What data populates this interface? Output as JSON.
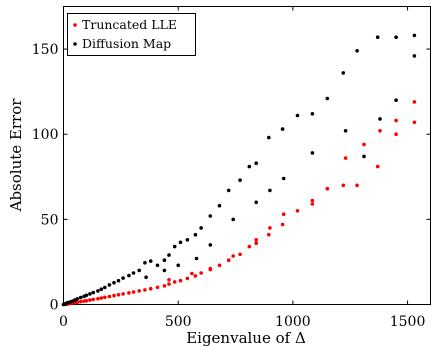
{
  "chart_data": {
    "type": "scatter",
    "xlabel": "Eigenvalue of Δ",
    "ylabel": "Absolute Error",
    "xlim": [
      0,
      1600
    ],
    "ylim": [
      0,
      175
    ],
    "xticks": [
      0,
      500,
      1000,
      1500
    ],
    "yticks": [
      0,
      50,
      100,
      150
    ],
    "grid": false,
    "legend_position": "top-left",
    "series": [
      {
        "name": "Truncated LLE",
        "color": "#ff0000",
        "x": [
          0,
          5,
          10,
          15,
          20,
          30,
          40,
          50,
          60,
          75,
          90,
          100,
          115,
          130,
          150,
          165,
          180,
          200,
          220,
          240,
          260,
          285,
          305,
          330,
          355,
          380,
          410,
          440,
          460,
          485,
          510,
          540,
          575,
          600,
          640,
          680,
          720,
          770,
          810,
          840,
          895,
          955,
          1020,
          1085,
          1150,
          1220,
          1280,
          1370,
          1450,
          1530
        ],
        "y": [
          0.0,
          0.1,
          0.2,
          0.3,
          0.4,
          0.6,
          0.8,
          1.1,
          1.3,
          1.7,
          2.0,
          2.2,
          2.6,
          3.0,
          3.4,
          3.8,
          4.2,
          4.7,
          5.2,
          5.7,
          6.2,
          6.8,
          7.3,
          8.0,
          8.6,
          9.3,
          10.1,
          10.9,
          12.0,
          13.3,
          14.0,
          15.3,
          16.8,
          18.5,
          20.5,
          23.0,
          26.0,
          29.5,
          34.0,
          36.0,
          41.0,
          47.0,
          55.0,
          61.0,
          68.0,
          70.0,
          70.0,
          81.0,
          100.0,
          107.0
        ]
      },
      {
        "name": "",
        "color": "#ff0000",
        "x": [
          460,
          560,
          640,
          740,
          840,
          900,
          960,
          1085,
          1230,
          1310,
          1380,
          1450,
          1530
        ],
        "y": [
          14.5,
          18.2,
          21.0,
          28.5,
          38.0,
          45.0,
          53.0,
          59.0,
          86.0,
          94.0,
          102.0,
          108.0,
          119.0
        ]
      },
      {
        "name": "Diffusion Map",
        "color": "#000000",
        "x": [
          0,
          5,
          10,
          15,
          20,
          30,
          40,
          50,
          60,
          75,
          90,
          100,
          115,
          130,
          150,
          165,
          180,
          200,
          220,
          240,
          260,
          285,
          305,
          330,
          355,
          380,
          410,
          440,
          460,
          485,
          510,
          540,
          575,
          600,
          640,
          680,
          720,
          770,
          810,
          840,
          895,
          955,
          1020,
          1085,
          1150,
          1220,
          1280,
          1370,
          1450,
          1530
        ],
        "y": [
          0.0,
          0.2,
          0.5,
          0.8,
          1.1,
          1.5,
          2.0,
          2.7,
          3.3,
          4.1,
          4.8,
          5.4,
          6.2,
          7.0,
          8.0,
          9.0,
          10.0,
          11.5,
          12.8,
          14.0,
          15.5,
          17.0,
          18.5,
          20.0,
          24.5,
          25.5,
          23.0,
          26.0,
          29.0,
          34.0,
          36.5,
          38.0,
          41.0,
          45.0,
          52.0,
          58.0,
          67.0,
          73.0,
          81.0,
          83.0,
          98.0,
          103.0,
          111.0,
          112.0,
          121.0,
          136.0,
          149.0,
          157.0,
          157.0,
          158.0
        ]
      },
      {
        "name": "",
        "color": "#000000",
        "x": [
          360,
          440,
          500,
          580,
          640,
          740,
          840,
          900,
          960,
          1085,
          1230,
          1310,
          1380,
          1450,
          1530
        ],
        "y": [
          16.0,
          20.0,
          23.0,
          27.0,
          35.0,
          50.0,
          60.0,
          67.0,
          74.0,
          89.0,
          102.0,
          87.0,
          109.0,
          120.0,
          146.0
        ]
      }
    ]
  }
}
